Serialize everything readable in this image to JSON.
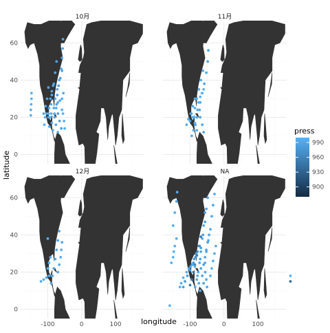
{
  "colors": {
    "land": "#333333",
    "grid_major": "#ebebeb",
    "grid_minor": "#f5f5f5",
    "low_pressure": "#132b43",
    "high_pressure": "#56b1f7"
  },
  "chart_data": {
    "type": "scatter",
    "xlabel": "longitude",
    "ylabel": "latitude",
    "xlim": [
      -180,
      185
    ],
    "ylim": [
      -5,
      72
    ],
    "x_ticks": [
      -100,
      0,
      100
    ],
    "y_ticks": [
      0,
      20,
      40,
      60
    ],
    "x_tick_labels": [
      "-100",
      "0",
      "100"
    ],
    "y_tick_labels": [
      "0",
      "20",
      "40",
      "60"
    ],
    "grid": true,
    "facet_layout": "2x2",
    "facets": [
      {
        "label": "10月",
        "tracks": [
          {
            "press": 1000,
            "points": [
              [
                -150,
                21
              ],
              [
                -150,
                24
              ],
              [
                -149,
                27
              ],
              [
                -148,
                30
              ],
              [
                -148,
                33
              ]
            ]
          },
          {
            "press": 995,
            "points": [
              [
                -85,
                13
              ],
              [
                -88,
                17
              ],
              [
                -90,
                22
              ],
              [
                -90,
                27
              ],
              [
                -88,
                32
              ],
              [
                -84,
                37
              ]
            ]
          },
          {
            "press": 990,
            "points": [
              [
                -95,
                15
              ],
              [
                -98,
                20
              ],
              [
                -96,
                25
              ],
              [
                -92,
                30
              ],
              [
                -88,
                34
              ],
              [
                -82,
                38
              ],
              [
                -78,
                44
              ],
              [
                -74,
                50
              ]
            ]
          },
          {
            "press": 985,
            "points": [
              [
                -60,
                14
              ],
              [
                -65,
                18
              ],
              [
                -70,
                22
              ],
              [
                -74,
                27
              ],
              [
                -72,
                32
              ],
              [
                -68,
                37
              ],
              [
                -63,
                41
              ],
              [
                -58,
                45
              ]
            ]
          },
          {
            "press": 998,
            "points": [
              [
                -110,
                16
              ],
              [
                -108,
                20
              ],
              [
                -104,
                22
              ],
              [
                -98,
                22
              ],
              [
                -92,
                20
              ]
            ]
          },
          {
            "press": 992,
            "points": [
              [
                -70,
                12
              ],
              [
                -76,
                16
              ],
              [
                -80,
                20
              ],
              [
                -82,
                25
              ],
              [
                -78,
                30
              ],
              [
                -72,
                35
              ],
              [
                -66,
                40
              ],
              [
                -60,
                46
              ],
              [
                -58,
                52
              ],
              [
                -56,
                57
              ],
              [
                -55,
                62
              ]
            ]
          },
          {
            "press": 996,
            "points": [
              [
                -80,
                22
              ],
              [
                -75,
                25
              ],
              [
                -70,
                28
              ],
              [
                -64,
                29
              ],
              [
                -58,
                30
              ],
              [
                -54,
                33
              ]
            ]
          },
          {
            "press": 1000,
            "points": [
              [
                -50,
                14
              ],
              [
                -52,
                18
              ],
              [
                -55,
                22
              ],
              [
                -58,
                24
              ]
            ]
          },
          {
            "press": 988,
            "points": [
              [
                -112,
                22
              ],
              [
                -106,
                26
              ],
              [
                -102,
                30
              ],
              [
                -98,
                36
              ]
            ]
          }
        ]
      },
      {
        "label": "11月",
        "tracks": [
          {
            "press": 995,
            "points": [
              [
                -80,
                13
              ],
              [
                -85,
                16
              ],
              [
                -88,
                20
              ],
              [
                -86,
                25
              ],
              [
                -80,
                30
              ],
              [
                -74,
                35
              ],
              [
                -68,
                40
              ],
              [
                -62,
                45
              ]
            ]
          },
          {
            "press": 990,
            "points": [
              [
                -60,
                12
              ],
              [
                -64,
                16
              ],
              [
                -70,
                20
              ],
              [
                -72,
                24
              ],
              [
                -70,
                28
              ],
              [
                -64,
                33
              ],
              [
                -58,
                38
              ],
              [
                -52,
                44
              ],
              [
                -48,
                50
              ],
              [
                -46,
                56
              ]
            ]
          },
          {
            "press": 998,
            "points": [
              [
                -110,
                16
              ],
              [
                -105,
                19
              ],
              [
                -98,
                22
              ],
              [
                -92,
                20
              ],
              [
                -86,
                17
              ]
            ]
          },
          {
            "press": 993,
            "points": [
              [
                -95,
                10
              ],
              [
                -90,
                13
              ],
              [
                -84,
                16
              ],
              [
                -80,
                20
              ],
              [
                -78,
                24
              ]
            ]
          },
          {
            "press": 1000,
            "points": [
              [
                -75,
                28
              ],
              [
                -70,
                31
              ],
              [
                -65,
                33
              ],
              [
                -60,
                35
              ]
            ]
          },
          {
            "press": 988,
            "points": [
              [
                -100,
                18
              ],
              [
                -96,
                22
              ],
              [
                -92,
                26
              ],
              [
                -86,
                30
              ]
            ]
          }
        ]
      },
      {
        "label": "12月",
        "tracks": [
          {
            "press": 996,
            "points": [
              [
                -120,
                15
              ],
              [
                -112,
                16
              ],
              [
                -104,
                17
              ],
              [
                -96,
                18
              ],
              [
                -88,
                18
              ]
            ]
          },
          {
            "press": 990,
            "points": [
              [
                -90,
                14
              ],
              [
                -86,
                18
              ],
              [
                -82,
                22
              ],
              [
                -78,
                27
              ],
              [
                -74,
                32
              ],
              [
                -70,
                37
              ],
              [
                -66,
                42
              ]
            ]
          },
          {
            "press": 1000,
            "points": [
              [
                -100,
                38
              ]
            ]
          },
          {
            "press": 994,
            "points": [
              [
                -70,
                20
              ],
              [
                -66,
                24
              ],
              [
                -62,
                28
              ],
              [
                -60,
                32
              ],
              [
                -58,
                36
              ]
            ]
          },
          {
            "press": 998,
            "points": [
              [
                -100,
                22
              ],
              [
                -96,
                25
              ],
              [
                -92,
                28
              ]
            ]
          }
        ]
      },
      {
        "label": "NA",
        "tracks": [
          {
            "press": 1000,
            "points": [
              [
                -160,
                2
              ]
            ]
          },
          {
            "press": 998,
            "points": [
              [
                -155,
                25
              ],
              [
                -150,
                28
              ],
              [
                -148,
                31
              ],
              [
                -145,
                34
              ],
              [
                -140,
                38
              ]
            ]
          },
          {
            "press": 995,
            "points": [
              [
                -150,
                45
              ],
              [
                -145,
                52
              ],
              [
                -140,
                58
              ],
              [
                -138,
                63
              ]
            ]
          },
          {
            "press": 980,
            "points": [
              [
                -120,
                12
              ],
              [
                -115,
                15
              ],
              [
                -108,
                18
              ],
              [
                -100,
                21
              ],
              [
                -94,
                24
              ],
              [
                -88,
                27
              ],
              [
                -82,
                30
              ]
            ]
          },
          {
            "press": 950,
            "points": [
              [
                -100,
                13
              ],
              [
                -95,
                16
              ],
              [
                -90,
                20
              ],
              [
                -86,
                24
              ],
              [
                -80,
                29
              ],
              [
                -74,
                34
              ],
              [
                -68,
                39
              ]
            ]
          },
          {
            "press": 990,
            "points": [
              [
                -85,
                12
              ],
              [
                -80,
                16
              ],
              [
                -76,
                20
              ],
              [
                -72,
                25
              ],
              [
                -68,
                31
              ],
              [
                -64,
                38
              ],
              [
                -60,
                45
              ],
              [
                -56,
                52
              ]
            ]
          },
          {
            "press": 985,
            "points": [
              [
                -60,
                14
              ],
              [
                -64,
                18
              ],
              [
                -68,
                22
              ],
              [
                -70,
                27
              ],
              [
                -68,
                33
              ],
              [
                -62,
                40
              ],
              [
                -56,
                47
              ],
              [
                -52,
                54
              ],
              [
                -48,
                60
              ]
            ]
          },
          {
            "press": 992,
            "points": [
              [
                -50,
                12
              ],
              [
                -52,
                16
              ],
              [
                -55,
                20
              ],
              [
                -56,
                25
              ],
              [
                -52,
                31
              ],
              [
                -46,
                37
              ],
              [
                -40,
                43
              ],
              [
                -36,
                50
              ],
              [
                -32,
                56
              ],
              [
                -28,
                62
              ]
            ]
          },
          {
            "press": 997,
            "points": [
              [
                -40,
                18
              ],
              [
                -36,
                22
              ],
              [
                -32,
                26
              ],
              [
                -28,
                30
              ],
              [
                -24,
                34
              ]
            ]
          },
          {
            "press": 970,
            "points": [
              [
                -90,
                25
              ],
              [
                -84,
                28
              ],
              [
                -78,
                31
              ],
              [
                -72,
                34
              ]
            ]
          },
          {
            "press": 996,
            "points": [
              [
                -110,
                20
              ],
              [
                -104,
                22
              ],
              [
                -98,
                23
              ],
              [
                -92,
                24
              ],
              [
                -86,
                23
              ]
            ]
          },
          {
            "press": 994,
            "points": [
              [
                -70,
                10
              ],
              [
                -74,
                14
              ],
              [
                -78,
                18
              ]
            ]
          },
          {
            "press": 1000,
            "points": [
              [
                -130,
                12
              ],
              [
                -126,
                14
              ],
              [
                -120,
                17
              ]
            ]
          },
          {
            "press": 988,
            "points": [
              [
                -60,
                24
              ],
              [
                -56,
                28
              ],
              [
                -52,
                32
              ],
              [
                -48,
                36
              ],
              [
                -44,
                40
              ]
            ]
          }
        ]
      }
    ],
    "extra_points": [
      {
        "press": 1000,
        "x": 180,
        "y": 18
      },
      {
        "press": 940,
        "x": 180,
        "y": 15
      }
    ],
    "legend": {
      "title": "press",
      "position": "right",
      "range": [
        880,
        1000
      ],
      "breaks": [
        990,
        960,
        930,
        900
      ]
    }
  }
}
